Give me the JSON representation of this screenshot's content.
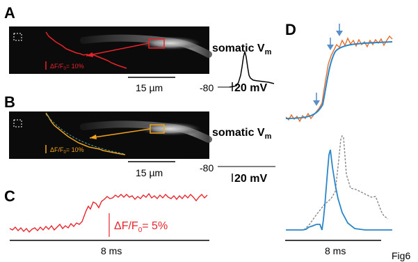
{
  "panels": {
    "A": {
      "letter": "A",
      "somatic": "somatic V",
      "sub": "m",
      "scalebar": "15 µm",
      "vrest": "-80",
      "mv": "20 mV",
      "df_label": "ΔF/F",
      "df_sub": "0",
      "df_value": "= 10%"
    },
    "B": {
      "letter": "B",
      "somatic": "somatic V",
      "sub": "m",
      "scalebar": "15 µm",
      "vrest": "-80",
      "mv": "20 mV",
      "df_label": "ΔF/F",
      "df_sub": "0",
      "df_value": "= 10%"
    },
    "C": {
      "letter": "C",
      "df_label": "ΔF/F",
      "df_sub": "0",
      "df_value": "= 5%",
      "time": "8 ms"
    },
    "D": {
      "letter": "D",
      "time": "8 ms"
    }
  },
  "fig_label": "Fig6",
  "colors": {
    "red": "#e8232a",
    "orange": "#f0a21c",
    "blue": "#2a86c8",
    "orange_trace": "#e66c28",
    "dashed": "#888888"
  }
}
